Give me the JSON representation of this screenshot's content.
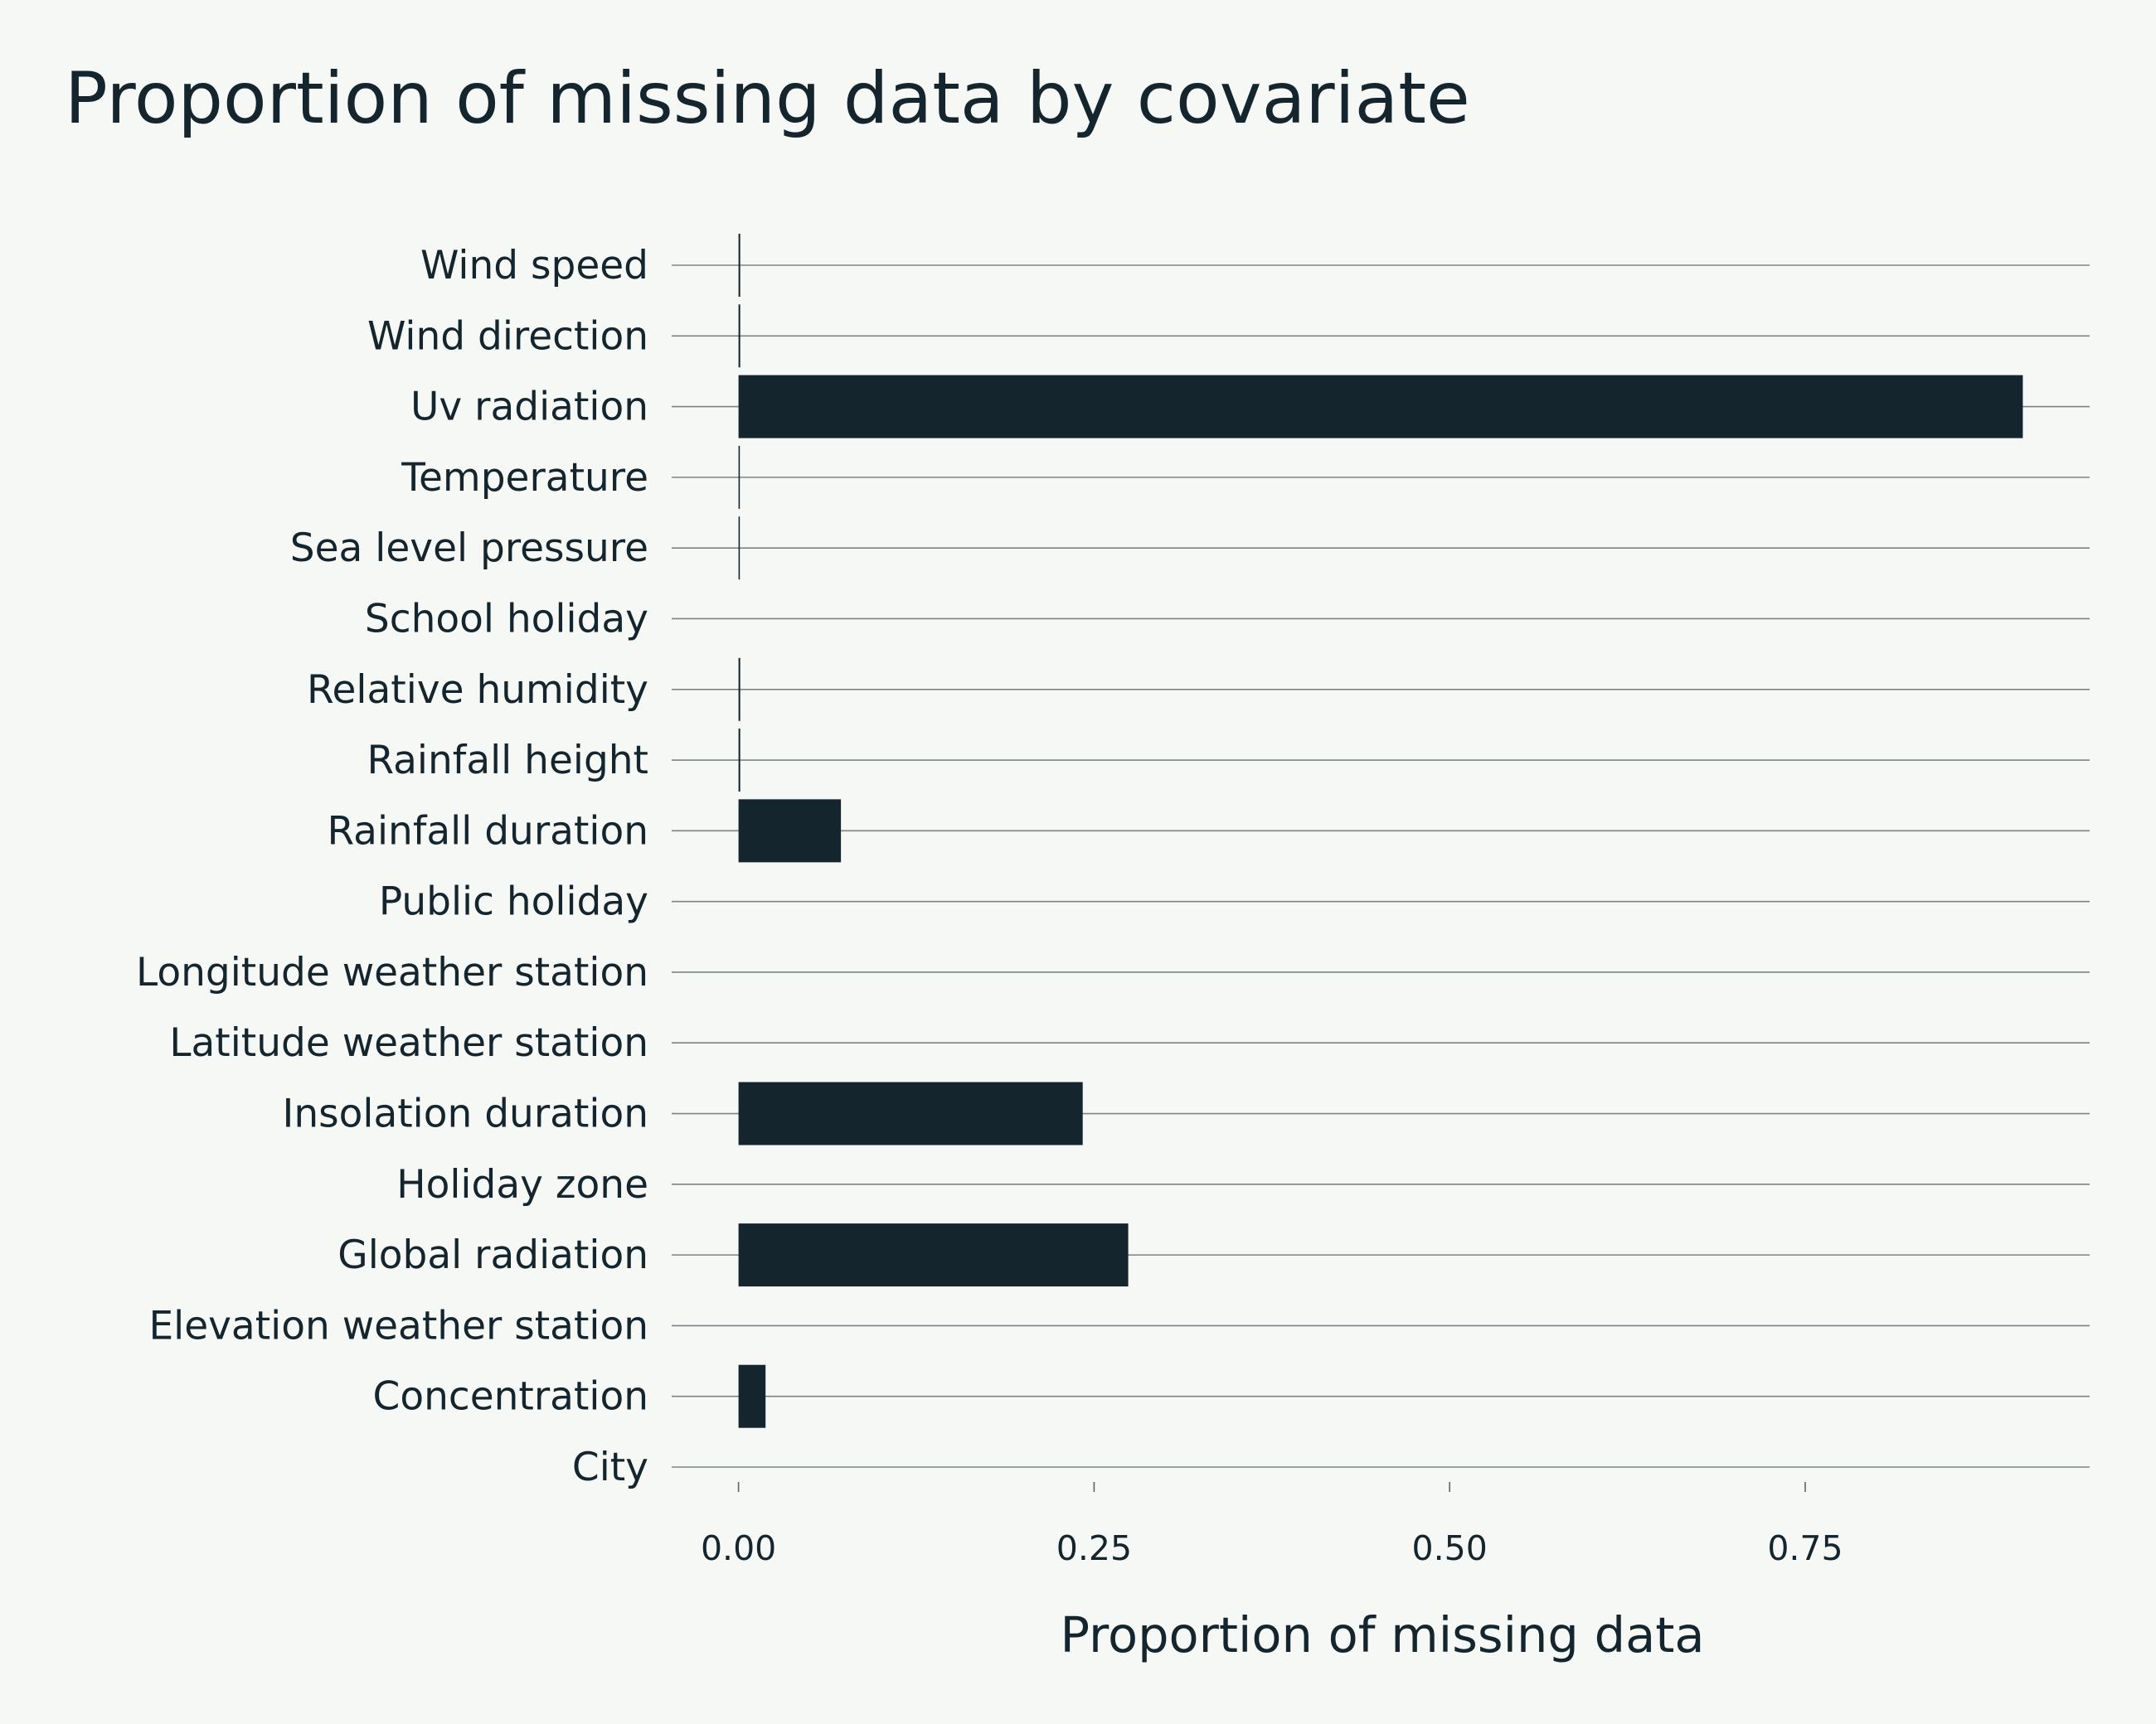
{
  "chart_data": {
    "type": "bar",
    "orientation": "horizontal",
    "title": "Proportion of missing data by covariate",
    "xlabel": "Proportion of missing data",
    "ylabel": "",
    "xlim": [
      -0.047,
      0.95
    ],
    "xticks": [
      0.0,
      0.25,
      0.5,
      0.75
    ],
    "xtick_labels": [
      "0.00",
      "0.25",
      "0.50",
      "0.75"
    ],
    "grid": "horizontal",
    "bar_color": "#14252d",
    "background": "#f5f8f5",
    "categories": [
      "Wind speed",
      "Wind direction",
      "Uv radiation",
      "Temperature",
      "Sea level pressure",
      "School holiday",
      "Relative humidity",
      "Rainfall height",
      "Rainfall duration",
      "Public holiday",
      "Longitude weather station",
      "Latitude weather station",
      "Insolation duration",
      "Holiday zone",
      "Global radiation",
      "Elevation weather station",
      "Concentration",
      "City"
    ],
    "values": [
      0.0012,
      0.0012,
      0.903,
      0.0005,
      0.0005,
      0.0,
      0.0012,
      0.0012,
      0.072,
      0.0,
      0.0,
      0.0,
      0.242,
      0.0,
      0.274,
      0.0,
      0.019,
      0.0
    ]
  }
}
